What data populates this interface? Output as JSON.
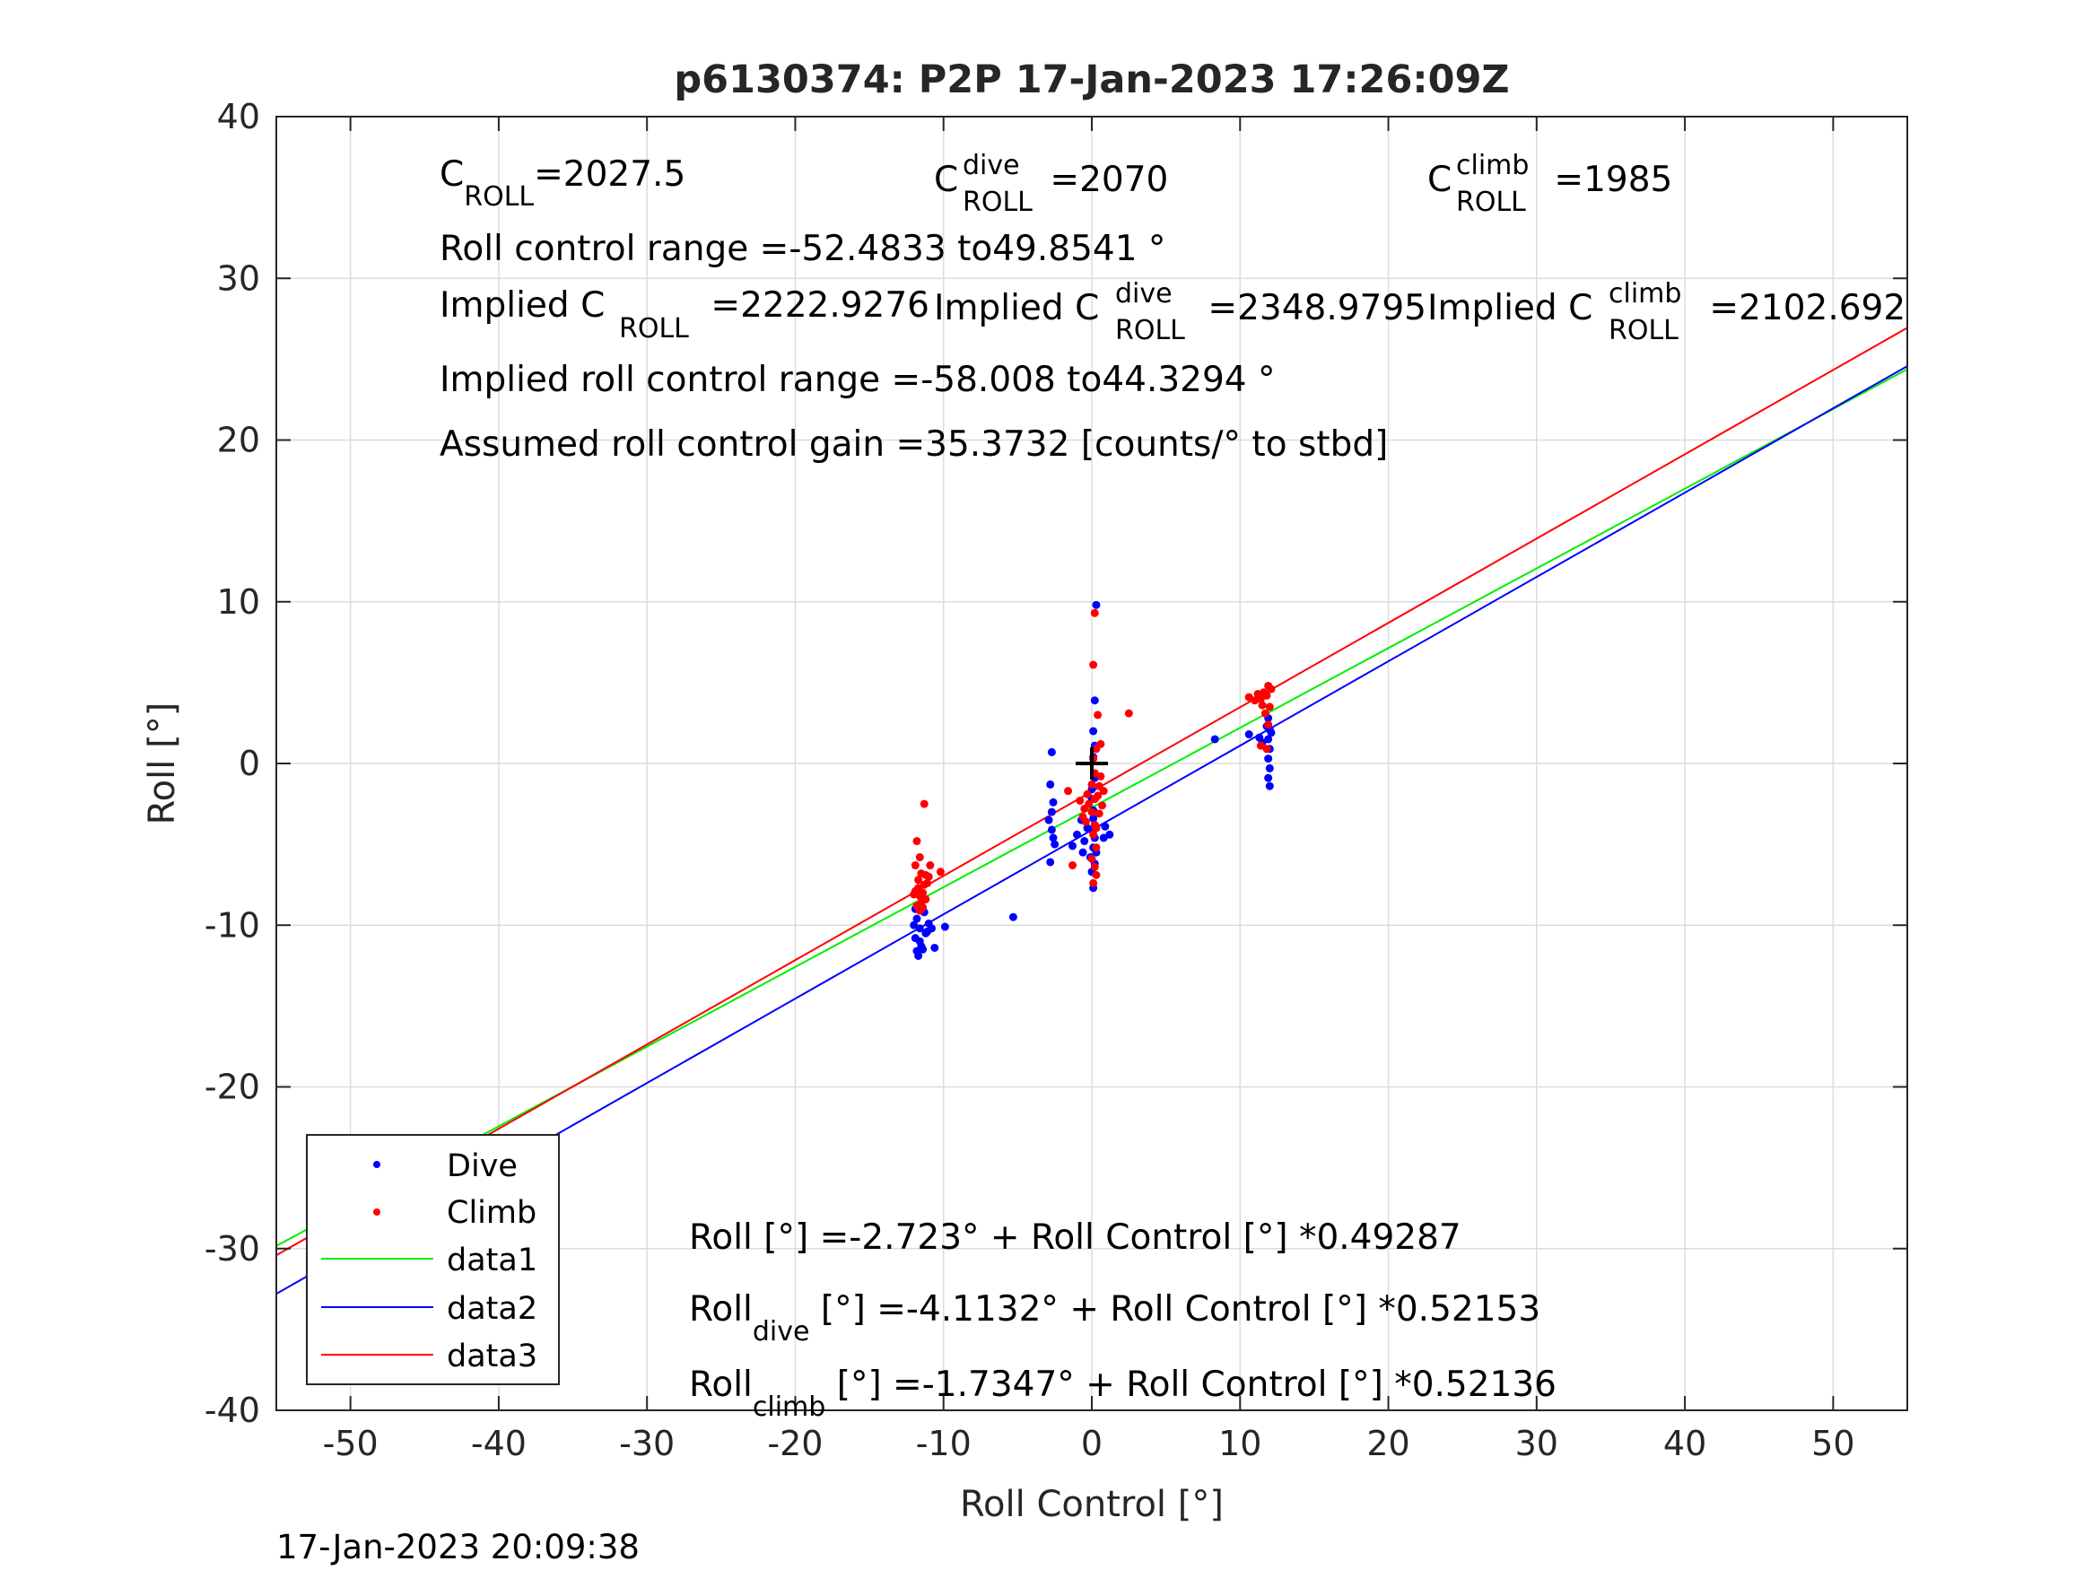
{
  "chart_data": {
    "type": "scatter",
    "title": "p6130374: P2P 17-Jan-2023 17:26:09Z",
    "xlabel": "Roll Control [°]",
    "ylabel": "Roll [°]",
    "xlim": [
      -55,
      55
    ],
    "ylim": [
      -40,
      40
    ],
    "xticks": [
      -50,
      -40,
      -30,
      -20,
      -10,
      0,
      10,
      20,
      30,
      40,
      50
    ],
    "yticks": [
      -40,
      -30,
      -20,
      -10,
      0,
      10,
      20,
      30,
      40
    ],
    "grid": true,
    "legend_placement": "bottom-left",
    "footer_timestamp": "17-Jan-2023 20:09:38",
    "annotations": {
      "c_roll": {
        "base": "C",
        "sub": "ROLL",
        "value": "=2027.5"
      },
      "c_roll_dive": {
        "base": "C",
        "sup": "dive",
        "sub": "ROLL",
        "value": " =2070"
      },
      "c_roll_climb": {
        "base": "C",
        "sup": "climb",
        "sub": "ROLL",
        "value": " =1985"
      },
      "roll_control_range": "Roll control range =-52.4833 to49.8541 °",
      "implied_c_roll": {
        "base": "Implied C",
        "sub": "ROLL",
        "value": " =2222.9276"
      },
      "implied_c_roll_dive": {
        "base": "Implied C",
        "sup": "dive",
        "sub": "ROLL",
        "value": " =2348.9795"
      },
      "implied_c_roll_climb": {
        "base": "Implied C",
        "sup": "climb",
        "sub": "ROLL",
        "value": " =2102.692"
      },
      "implied_roll_control_range": "Implied roll control range =-58.008 to44.3294 °",
      "assumed_gain": "Assumed roll control gain =35.3732 [counts/° to stbd]",
      "fit_all": "Roll [°] =-2.723° + Roll Control [°] *0.49287",
      "fit_dive": {
        "base": "Roll",
        "sub": "dive",
        "rest": " [°] =-4.1132° + Roll Control [°] *0.52153"
      },
      "fit_climb": {
        "base": "Roll",
        "sub": "climb",
        "rest": " [°] =-1.7347° + Roll Control [°] *0.52136"
      }
    },
    "colors": {
      "dive": "#0000ff",
      "climb": "#ff0000",
      "data1": "#00ee00",
      "data2": "#0000ff",
      "data3": "#ff0000",
      "grid": "#dcdcdc",
      "axis": "#262626"
    },
    "series": [
      {
        "name": "Dive",
        "kind": "points",
        "color": "#0000ff",
        "points": [
          [
            -11.8,
            -9.6
          ],
          [
            -11.6,
            -10.2
          ],
          [
            -11.9,
            -10.8
          ],
          [
            -11.5,
            -11.3
          ],
          [
            -11.7,
            -11.9
          ],
          [
            -11.4,
            -11.5
          ],
          [
            -11.2,
            -10.5
          ],
          [
            -11.0,
            -9.9
          ],
          [
            -11.3,
            -9.2
          ],
          [
            -11.9,
            -9.0
          ],
          [
            -12.0,
            -10.0
          ],
          [
            -11.6,
            -11.0
          ],
          [
            -11.1,
            -10.4
          ],
          [
            -10.6,
            -11.4
          ],
          [
            -9.9,
            -10.1
          ],
          [
            -10.8,
            -10.2
          ],
          [
            -11.5,
            -8.8
          ],
          [
            -11.8,
            -11.6
          ],
          [
            -5.3,
            -9.5
          ],
          [
            -2.7,
            0.7
          ],
          [
            -2.8,
            -1.3
          ],
          [
            -2.6,
            -2.4
          ],
          [
            -2.9,
            -3.5
          ],
          [
            -2.7,
            -4.1
          ],
          [
            -2.5,
            -5.0
          ],
          [
            -2.8,
            -6.1
          ],
          [
            -2.6,
            -4.6
          ],
          [
            -2.7,
            -3.0
          ],
          [
            -1.3,
            -5.1
          ],
          [
            -1.0,
            -4.4
          ],
          [
            -0.6,
            -5.5
          ],
          [
            -0.3,
            -4.0
          ],
          [
            -0.5,
            -4.8
          ],
          [
            -0.7,
            -3.5
          ],
          [
            0.0,
            -2.2
          ],
          [
            0.1,
            -3.4
          ],
          [
            0.0,
            -4.1
          ],
          [
            0.2,
            -4.6
          ],
          [
            0.1,
            -5.2
          ],
          [
            -0.1,
            -5.8
          ],
          [
            0.2,
            -6.2
          ],
          [
            0.0,
            -6.7
          ],
          [
            0.1,
            -7.7
          ],
          [
            0.3,
            -5.5
          ],
          [
            0.2,
            -3.8
          ],
          [
            0.1,
            -2.9
          ],
          [
            0.0,
            -1.6
          ],
          [
            0.2,
            -0.9
          ],
          [
            0.1,
            0.4
          ],
          [
            0.2,
            1.1
          ],
          [
            0.1,
            2.0
          ],
          [
            0.2,
            3.9
          ],
          [
            0.3,
            9.8
          ],
          [
            0.8,
            -4.6
          ],
          [
            1.2,
            -4.4
          ],
          [
            0.9,
            -3.9
          ],
          [
            8.3,
            1.5
          ],
          [
            10.6,
            1.8
          ],
          [
            11.3,
            1.6
          ],
          [
            11.5,
            1.3
          ],
          [
            11.9,
            2.8
          ],
          [
            12.0,
            2.1
          ],
          [
            11.9,
            1.5
          ],
          [
            12.0,
            0.9
          ],
          [
            11.9,
            0.3
          ],
          [
            12.0,
            -0.3
          ],
          [
            11.9,
            -0.9
          ],
          [
            12.0,
            -1.4
          ],
          [
            11.8,
            2.3
          ],
          [
            12.1,
            1.9
          ]
        ]
      },
      {
        "name": "Climb",
        "kind": "points",
        "color": "#ff0000",
        "points": [
          [
            -11.8,
            -4.8
          ],
          [
            -11.6,
            -5.8
          ],
          [
            -11.9,
            -6.3
          ],
          [
            -11.5,
            -6.8
          ],
          [
            -11.7,
            -7.2
          ],
          [
            -11.3,
            -7.5
          ],
          [
            -11.9,
            -7.9
          ],
          [
            -11.6,
            -8.2
          ],
          [
            -11.2,
            -8.4
          ],
          [
            -11.8,
            -8.8
          ],
          [
            -11.4,
            -8.0
          ],
          [
            -11.1,
            -7.4
          ],
          [
            -11.7,
            -7.7
          ],
          [
            -11.5,
            -8.6
          ],
          [
            -12.0,
            -8.1
          ],
          [
            -11.2,
            -6.9
          ],
          [
            -10.9,
            -6.3
          ],
          [
            -11.0,
            -7.0
          ],
          [
            -11.3,
            -2.5
          ],
          [
            -10.2,
            -6.7
          ],
          [
            -11.4,
            -8.9
          ],
          [
            -11.6,
            -9.1
          ],
          [
            -1.6,
            -1.7
          ],
          [
            -1.3,
            -6.3
          ],
          [
            -0.8,
            -2.3
          ],
          [
            -0.5,
            -2.8
          ],
          [
            -0.3,
            -1.9
          ],
          [
            -0.6,
            -3.3
          ],
          [
            -0.2,
            -2.5
          ],
          [
            0.0,
            -1.3
          ],
          [
            0.2,
            -0.6
          ],
          [
            0.1,
            0.3
          ],
          [
            0.3,
            0.9
          ],
          [
            0.0,
            -3.0
          ],
          [
            0.2,
            -3.8
          ],
          [
            0.1,
            -4.4
          ],
          [
            0.3,
            -5.2
          ],
          [
            0.0,
            -5.9
          ],
          [
            0.2,
            -6.4
          ],
          [
            0.3,
            -6.9
          ],
          [
            0.1,
            -7.4
          ],
          [
            0.4,
            -2.0
          ],
          [
            0.5,
            -1.4
          ],
          [
            0.6,
            -0.8
          ],
          [
            0.8,
            -1.7
          ],
          [
            0.7,
            -2.6
          ],
          [
            0.5,
            -3.1
          ],
          [
            0.3,
            -4.0
          ],
          [
            0.2,
            -2.2
          ],
          [
            0.1,
            6.1
          ],
          [
            0.2,
            9.3
          ],
          [
            0.4,
            3.0
          ],
          [
            0.6,
            1.2
          ],
          [
            -0.4,
            -3.6
          ],
          [
            2.5,
            3.1
          ],
          [
            10.6,
            4.1
          ],
          [
            11.0,
            3.9
          ],
          [
            11.4,
            4.0
          ],
          [
            11.6,
            4.4
          ],
          [
            11.5,
            3.6
          ],
          [
            11.8,
            4.2
          ],
          [
            11.9,
            4.8
          ],
          [
            12.0,
            3.5
          ],
          [
            11.7,
            3.1
          ],
          [
            11.9,
            2.4
          ],
          [
            11.4,
            1.1
          ],
          [
            11.8,
            0.9
          ],
          [
            11.2,
            4.3
          ],
          [
            12.1,
            4.6
          ]
        ]
      },
      {
        "name": "data1",
        "kind": "line",
        "color": "#00ee00",
        "intercept": -2.723,
        "slope": 0.49287
      },
      {
        "name": "data2",
        "kind": "line",
        "color": "#0000ff",
        "intercept": -4.1132,
        "slope": 0.52153
      },
      {
        "name": "data3",
        "kind": "line",
        "color": "#ff0000",
        "intercept": -1.7347,
        "slope": 0.52136
      }
    ],
    "centroid_marker": {
      "x": 0,
      "y": 0,
      "color": "#000000"
    }
  }
}
